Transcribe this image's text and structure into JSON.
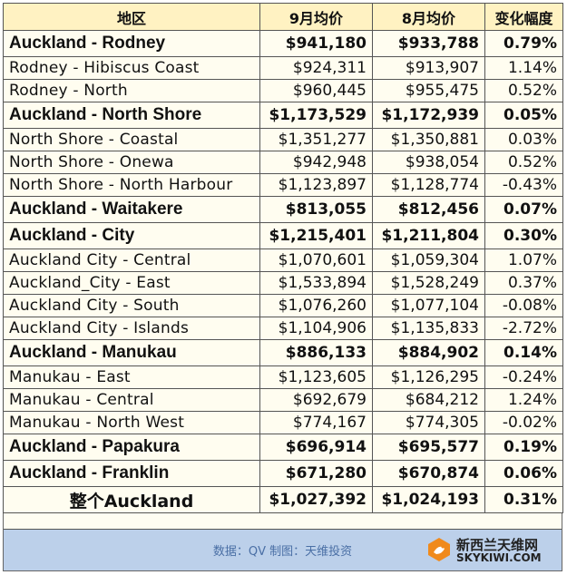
{
  "headers": [
    "地区",
    "9月均价",
    "8月均价",
    "变化幅度"
  ],
  "rows": [
    {
      "region": "Auckland - Rodney",
      "sep": "$941,180",
      "aug": "$933,788",
      "change": "0.79%",
      "major": true
    },
    {
      "region": "Rodney - Hibiscus Coast",
      "sep": "$924,311",
      "aug": "$913,907",
      "change": "1.14%",
      "major": false
    },
    {
      "region": "Rodney - North",
      "sep": "$960,445",
      "aug": "$955,475",
      "change": "0.52%",
      "major": false
    },
    {
      "region": "Auckland - North Shore",
      "sep": "$1,173,529",
      "aug": "$1,172,939",
      "change": "0.05%",
      "major": true
    },
    {
      "region": "North Shore - Coastal",
      "sep": "$1,351,277",
      "aug": "$1,350,881",
      "change": "0.03%",
      "major": false
    },
    {
      "region": "North Shore - Onewa",
      "sep": "$942,948",
      "aug": "$938,054",
      "change": "0.52%",
      "major": false
    },
    {
      "region": "North Shore - North Harbour",
      "sep": "$1,123,897",
      "aug": "$1,128,774",
      "change": "-0.43%",
      "major": false
    },
    {
      "region": "Auckland - Waitakere",
      "sep": "$813,055",
      "aug": "$812,456",
      "change": "0.07%",
      "major": true
    },
    {
      "region": "Auckland - City",
      "sep": "$1,215,401",
      "aug": "$1,211,804",
      "change": "0.30%",
      "major": true
    },
    {
      "region": "Auckland City - Central",
      "sep": "$1,070,601",
      "aug": "$1,059,304",
      "change": "1.07%",
      "major": false
    },
    {
      "region": "Auckland_City - East",
      "sep": "$1,533,894",
      "aug": "$1,528,249",
      "change": "0.37%",
      "major": false
    },
    {
      "region": "Auckland City - South",
      "sep": "$1,076,260",
      "aug": "$1,077,104",
      "change": "-0.08%",
      "major": false
    },
    {
      "region": "Auckland City - Islands",
      "sep": "$1,104,906",
      "aug": "$1,135,833",
      "change": "-2.72%",
      "major": false
    },
    {
      "region": "Auckland - Manukau",
      "sep": "$886,133",
      "aug": "$884,902",
      "change": "0.14%",
      "major": true
    },
    {
      "region": "Manukau - East",
      "sep": "$1,123,605",
      "aug": "$1,126,295",
      "change": "-0.24%",
      "major": false
    },
    {
      "region": "Manukau - Central",
      "sep": "$692,679",
      "aug": "$684,212",
      "change": "1.24%",
      "major": false
    },
    {
      "region": "Manukau - North West",
      "sep": "$774,167",
      "aug": "$774,305",
      "change": "-0.02%",
      "major": false
    },
    {
      "region": "Auckland - Papakura",
      "sep": "$696,914",
      "aug": "$695,577",
      "change": "0.19%",
      "major": true
    },
    {
      "region": "Auckland - Franklin",
      "sep": "$671,280",
      "aug": "$670,874",
      "change": "0.06%",
      "major": true
    },
    {
      "region": "整个Auckland",
      "sep": "$1,027,392",
      "aug": "$1,024,193",
      "change": "0.31%",
      "major": true,
      "total": true
    }
  ],
  "footer": {
    "source": "数据：QV 制图：天维投资",
    "logo_cn": "新西兰天维网",
    "logo_en": "SKYKIWI.COM"
  },
  "colors": {
    "header_bg": "#fff2c2",
    "cell_bg": "#fffdf0",
    "footer_bg": "#bcd0ea",
    "logo_orange": "#f08a1c"
  }
}
